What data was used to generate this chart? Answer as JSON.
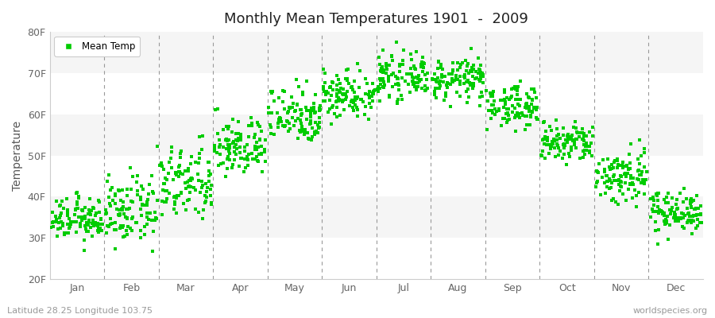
{
  "title": "Monthly Mean Temperatures 1901  -  2009",
  "ylabel": "Temperature",
  "ylim": [
    20,
    80
  ],
  "yticks": [
    20,
    30,
    40,
    50,
    60,
    70,
    80
  ],
  "ytick_labels": [
    "20F",
    "30F",
    "40F",
    "50F",
    "60F",
    "70F",
    "80F"
  ],
  "months": [
    "Jan",
    "Feb",
    "Mar",
    "Apr",
    "May",
    "Jun",
    "Jul",
    "Aug",
    "Sep",
    "Oct",
    "Nov",
    "Dec"
  ],
  "marker_color": "#00cc00",
  "legend_label": "Mean Temp",
  "subtitle_left": "Latitude 28.25 Longitude 103.75",
  "subtitle_right": "worldspecies.org",
  "bg_color": "#ffffff",
  "band_color_light": "#f5f5f5",
  "band_color_white": "#ffffff",
  "n_years": 109,
  "monthly_means": [
    34.5,
    36.5,
    43.0,
    52.0,
    60.0,
    65.0,
    69.0,
    68.5,
    62.0,
    53.0,
    45.0,
    36.5
  ],
  "monthly_stds": [
    2.5,
    4.0,
    4.5,
    3.5,
    3.5,
    3.0,
    2.5,
    2.5,
    2.5,
    2.5,
    3.5,
    2.5
  ]
}
